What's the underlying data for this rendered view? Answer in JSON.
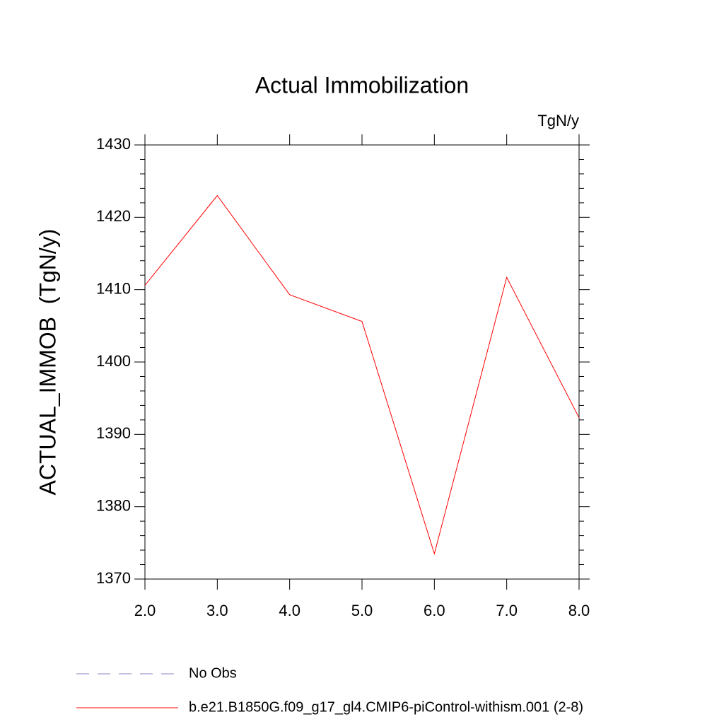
{
  "chart_data": {
    "type": "line",
    "title": "Actual Immobilization",
    "units": "TgN/y",
    "y_label": "ACTUAL_IMMOB  (TgN/y)",
    "x": [
      2,
      3,
      4,
      5,
      6,
      7,
      8
    ],
    "series": [
      {
        "name": "No Obs",
        "color": "#8c7fc4",
        "dashed": true,
        "values": [
          null,
          null,
          null,
          null,
          null,
          null,
          null
        ]
      },
      {
        "name": "b.e21.B1850G.f09_g17_gl4.CMIP6-piControl-withism.001 (2-8)",
        "color": "#ff0000",
        "dashed": false,
        "values": [
          1410.6,
          1423.0,
          1409.3,
          1405.6,
          1373.5,
          1411.7,
          1392.3
        ]
      }
    ],
    "xlim": [
      2,
      8
    ],
    "ylim": [
      1370,
      1430
    ],
    "xticks": [
      {
        "value": 2,
        "label": "2.0"
      },
      {
        "value": 3,
        "label": "3.0"
      },
      {
        "value": 4,
        "label": "4.0"
      },
      {
        "value": 5,
        "label": "5.0"
      },
      {
        "value": 6,
        "label": "6.0"
      },
      {
        "value": 7,
        "label": "7.0"
      },
      {
        "value": 8,
        "label": "8.0"
      }
    ],
    "yticks": [
      1370,
      1380,
      1390,
      1400,
      1410,
      1420,
      1430
    ],
    "yminorticks": [
      1372,
      1374,
      1376,
      1378,
      1382,
      1384,
      1386,
      1388,
      1392,
      1394,
      1396,
      1398,
      1402,
      1404,
      1406,
      1408,
      1412,
      1414,
      1416,
      1418,
      1422,
      1424,
      1426,
      1428
    ],
    "grid": false
  }
}
